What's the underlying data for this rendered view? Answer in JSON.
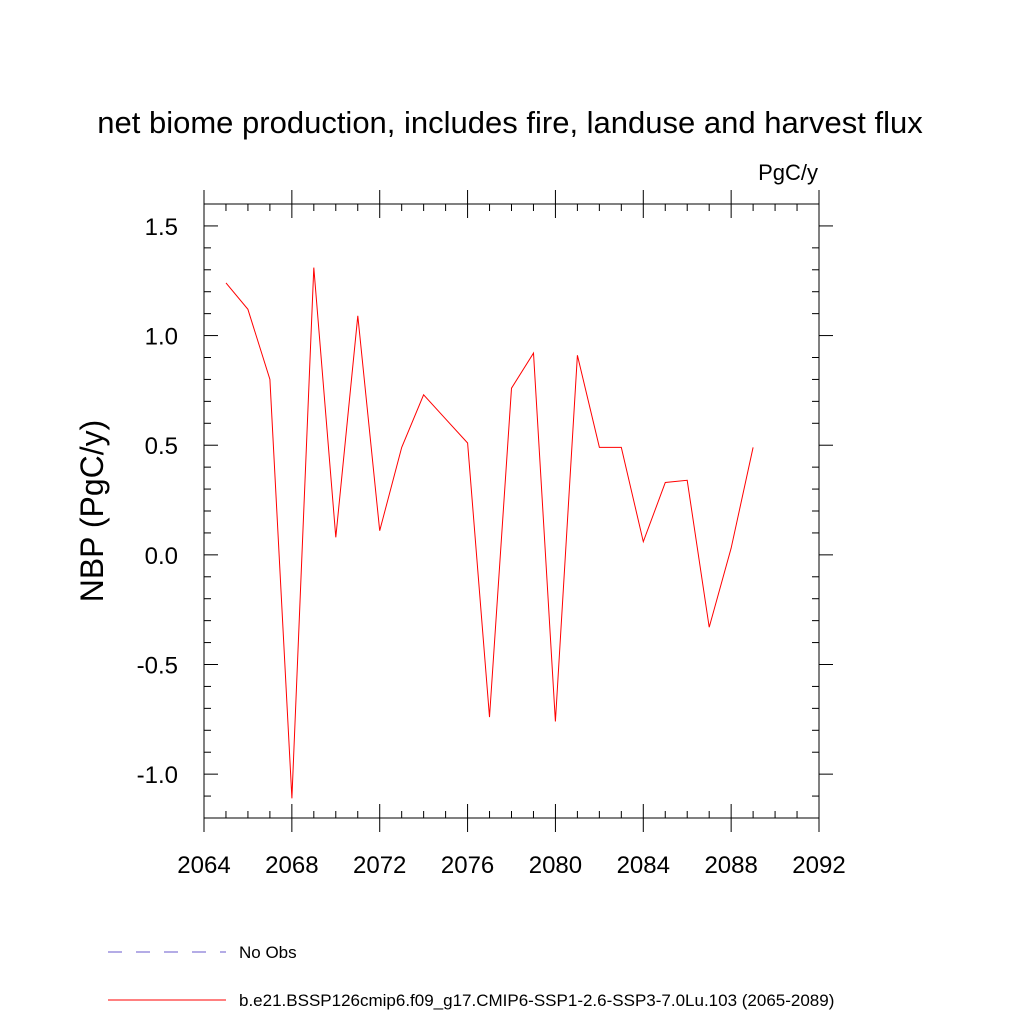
{
  "chart_data": {
    "type": "line",
    "title": "net biome production, includes fire, landuse and harvest flux",
    "units_label": "PgC/y",
    "ylabel": "NBP  (PgC/y)",
    "xlabel": "",
    "xlim": [
      2064,
      2092
    ],
    "ylim": [
      -1.2,
      1.6
    ],
    "x_ticks": [
      2064,
      2068,
      2072,
      2076,
      2080,
      2084,
      2088,
      2092
    ],
    "x_tick_labels": [
      "2064",
      "2068",
      "2072",
      "2076",
      "2080",
      "2084",
      "2088",
      "2092"
    ],
    "y_ticks": [
      -1.0,
      -0.5,
      0.0,
      0.5,
      1.0,
      1.5
    ],
    "y_tick_labels": [
      "-1.0",
      "-0.5",
      "0.0",
      "0.5",
      "1.0",
      "1.5"
    ],
    "x_minor_step": 1,
    "y_minor_step": 0.1,
    "grid": false,
    "legend_position": "bottom",
    "series": [
      {
        "name": "b.e21.BSSP126cmip6.f09_g17.CMIP6-SSP1-2.6-SSP3-7.0Lu.103 (2065-2089)",
        "color": "#ff0000",
        "x": [
          2065,
          2066,
          2067,
          2068,
          2069,
          2070,
          2071,
          2072,
          2073,
          2074,
          2075,
          2076,
          2077,
          2078,
          2079,
          2080,
          2081,
          2082,
          2083,
          2084,
          2085,
          2086,
          2087,
          2088,
          2089
        ],
        "y": [
          1.24,
          1.12,
          0.8,
          -1.11,
          1.31,
          0.08,
          1.09,
          0.11,
          0.49,
          0.73,
          0.62,
          0.51,
          -0.74,
          0.76,
          0.92,
          -0.76,
          0.91,
          0.49,
          0.49,
          0.06,
          0.33,
          0.34,
          -0.33,
          0.03,
          0.49
        ]
      }
    ],
    "legend": [
      {
        "label": "No Obs",
        "color": "#6a5acd",
        "dash": true
      },
      {
        "label": "b.e21.BSSP126cmip6.f09_g17.CMIP6-SSP1-2.6-SSP3-7.0Lu.103 (2065-2089)",
        "color": "#ff0000",
        "dash": false
      }
    ]
  }
}
